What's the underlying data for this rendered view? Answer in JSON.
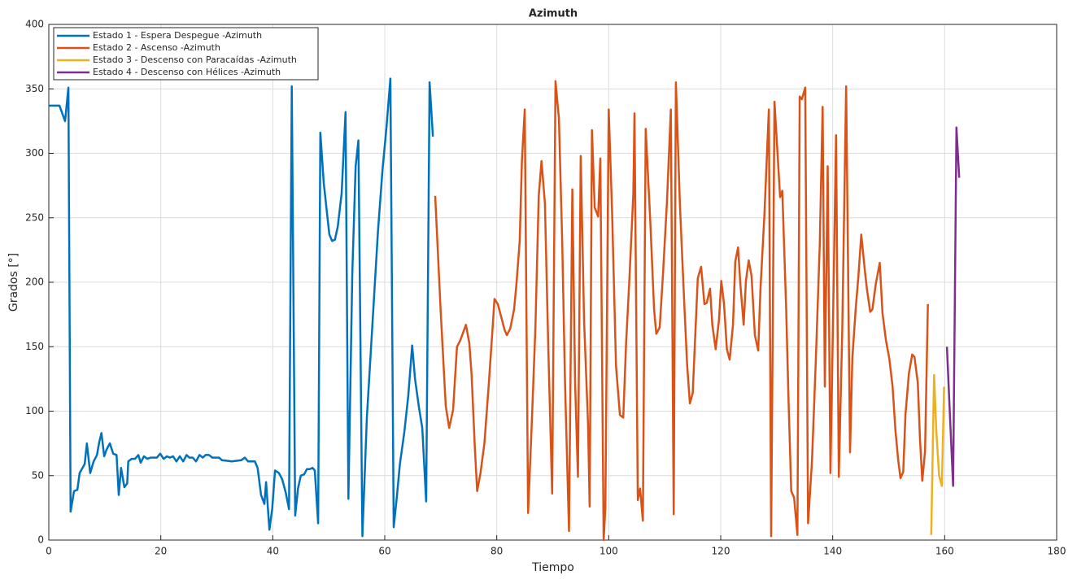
{
  "chart_data": {
    "type": "line",
    "title": "Azimuth",
    "xlabel": "Tiempo",
    "ylabel": "Grados [°]",
    "xlim": [
      0,
      180
    ],
    "ylim": [
      0,
      400
    ],
    "xticks": [
      0,
      20,
      40,
      60,
      80,
      100,
      120,
      140,
      160,
      180
    ],
    "yticks": [
      0,
      50,
      100,
      150,
      200,
      250,
      300,
      350,
      400
    ],
    "grid": true,
    "legend": "top-left",
    "series": [
      {
        "name": "Estado 1 - Espera Despegue -Azimuth",
        "color": "#0072BD",
        "x": [
          0,
          1.9,
          2.9,
          3.5,
          3.9,
          4.5,
          5.1,
          5.5,
          6.4,
          6.8,
          7.4,
          8.0,
          8.6,
          9.0,
          9.4,
          9.9,
          10.3,
          10.9,
          11.5,
          12.1,
          12.5,
          12.9,
          13.5,
          14.0,
          14.2,
          14.8,
          15.4,
          16.0,
          16.4,
          17.0,
          17.6,
          18.2,
          18.7,
          19.3,
          19.9,
          20.5,
          21.1,
          21.6,
          22.2,
          22.8,
          23.4,
          24.0,
          24.6,
          25.1,
          25.7,
          26.3,
          26.9,
          27.5,
          28.0,
          28.6,
          29.2,
          30.4,
          30.9,
          32.7,
          34.4,
          35.0,
          35.6,
          36.8,
          37.3,
          37.9,
          38.5,
          38.8,
          39.4,
          39.9,
          40.4,
          41.1,
          41.7,
          42.3,
          42.9,
          43.4,
          44.0,
          44.5,
          45.0,
          45.6,
          46.1,
          46.6,
          47.1,
          47.5,
          48.1,
          48.5,
          49.1,
          49.7,
          50.1,
          50.6,
          51.1,
          51.6,
          52.3,
          53.0,
          53.5,
          54.2,
          54.8,
          55.3,
          56.0,
          56.8,
          57.8,
          58.8,
          59.6,
          60.3,
          61.0,
          61.6,
          62.2,
          62.7,
          63.5,
          64.2,
          64.9,
          65.4,
          66.1,
          66.7,
          67.4,
          68.0,
          68.6
        ],
        "values": [
          337,
          337,
          325,
          351,
          22,
          38,
          39,
          52,
          59,
          75,
          52,
          61,
          66,
          76,
          83,
          65,
          70,
          75,
          67,
          66,
          35,
          56,
          41,
          44,
          61,
          63,
          63,
          66,
          60,
          65,
          63,
          64,
          64,
          64,
          67,
          63,
          65,
          64,
          65,
          61,
          65,
          61,
          66,
          64,
          64,
          61,
          66,
          64,
          66,
          66,
          64,
          64,
          62,
          61,
          62,
          64,
          61,
          61,
          56,
          35,
          28,
          45,
          8,
          24,
          54,
          52,
          47,
          37,
          24,
          352,
          19,
          40,
          50,
          51,
          55,
          55,
          56,
          54,
          13,
          316,
          277,
          253,
          237,
          232,
          233,
          243,
          269,
          332,
          32,
          207,
          290,
          310,
          3,
          95,
          168,
          240,
          287,
          320,
          358,
          10,
          35,
          59,
          84,
          112,
          151,
          125,
          103,
          87,
          30,
          355,
          313
        ]
      },
      {
        "name": "Estado 2 - Ascenso -Azimuth",
        "color": "#D95319",
        "x": [
          69.0,
          70.0,
          70.9,
          71.5,
          72.2,
          72.9,
          73.5,
          74.5,
          75.1,
          75.5,
          76.1,
          76.5,
          77.1,
          77.8,
          78.6,
          79.2,
          79.6,
          80.2,
          80.8,
          81.4,
          81.8,
          82.4,
          83.1,
          83.5,
          84.1,
          84.5,
          85.0,
          85.6,
          86.3,
          86.9,
          87.5,
          88.0,
          88.6,
          89.2,
          89.9,
          90.5,
          91.1,
          91.7,
          92.2,
          92.9,
          93.5,
          94.0,
          94.5,
          95.0,
          95.6,
          96.3,
          96.6,
          97.0,
          97.5,
          98.1,
          98.5,
          99.1,
          99.4,
          100.0,
          100.6,
          101.3,
          102.0,
          102.6,
          103.1,
          103.7,
          104.4,
          104.6,
          105.2,
          105.6,
          106.1,
          106.6,
          107.4,
          108.1,
          108.5,
          109.1,
          109.7,
          110.4,
          111.1,
          111.6,
          112.0,
          112.7,
          113.5,
          114.0,
          114.5,
          115.0,
          115.9,
          116.5,
          117.1,
          117.5,
          118.1,
          118.5,
          119.1,
          119.7,
          120.1,
          120.6,
          121.1,
          121.6,
          122.2,
          122.6,
          123.1,
          123.5,
          124.1,
          124.5,
          125.0,
          125.5,
          126.1,
          126.7,
          127.1,
          127.8,
          128.6,
          129.0,
          129.6,
          130.2,
          130.6,
          131.0,
          131.7,
          132.1,
          132.6,
          133.1,
          133.7,
          134.1,
          134.5,
          135.1,
          135.6,
          136.3,
          137.0,
          137.7,
          138.2,
          138.6,
          139.1,
          139.6,
          140.2,
          140.6,
          141.1,
          141.7,
          142.4,
          143.1,
          143.5,
          144.1,
          144.6,
          145.1,
          145.7,
          146.1,
          146.7,
          147.1,
          147.7,
          148.4,
          148.9,
          149.5,
          150.1,
          150.7,
          151.2,
          151.7,
          152.1,
          152.6,
          153.0,
          153.6,
          154.2,
          154.6,
          155.2,
          155.6,
          156.0,
          156.5,
          157.0
        ],
        "values": [
          267,
          177,
          104,
          87,
          101,
          150,
          155,
          167,
          153,
          129,
          71,
          38,
          52,
          75,
          122,
          161,
          187,
          183,
          173,
          163,
          159,
          164,
          179,
          198,
          232,
          294,
          334,
          21,
          95,
          165,
          267,
          294,
          261,
          150,
          36,
          356,
          327,
          230,
          122,
          7,
          272,
          122,
          49,
          298,
          171,
          90,
          26,
          318,
          258,
          251,
          296,
          0,
          25,
          334,
          254,
          135,
          97,
          95,
          153,
          203,
          269,
          331,
          31,
          40,
          15,
          319,
          249,
          179,
          160,
          165,
          207,
          262,
          334,
          20,
          355,
          261,
          182,
          136,
          106,
          114,
          203,
          212,
          183,
          184,
          195,
          167,
          148,
          171,
          201,
          183,
          148,
          140,
          167,
          216,
          227,
          199,
          167,
          201,
          217,
          205,
          159,
          147,
          195,
          252,
          334,
          3,
          340,
          296,
          266,
          271,
          179,
          110,
          38,
          33,
          4,
          344,
          342,
          351,
          13,
          61,
          141,
          230,
          336,
          119,
          290,
          52,
          205,
          314,
          49,
          162,
          352,
          68,
          141,
          179,
          205,
          237,
          211,
          195,
          177,
          179,
          199,
          215,
          176,
          155,
          141,
          119,
          85,
          62,
          48,
          53,
          97,
          129,
          144,
          142,
          122,
          78,
          46,
          69,
          183
        ]
      },
      {
        "name": "Estado 3 - Descenso con Paracaídas -Azimuth",
        "color": "#EDB120",
        "x": [
          157.6,
          158.1,
          158.5,
          159.0,
          159.5,
          159.9
        ],
        "values": [
          4,
          128,
          85,
          50,
          42,
          119
        ]
      },
      {
        "name": "Estado 4 - Descenso con Hélices -Azimuth",
        "color": "#7E2F8E",
        "x": [
          160.4,
          161.0,
          161.5,
          162.1,
          162.6
        ],
        "values": [
          150,
          91,
          42,
          320,
          281
        ]
      }
    ]
  }
}
